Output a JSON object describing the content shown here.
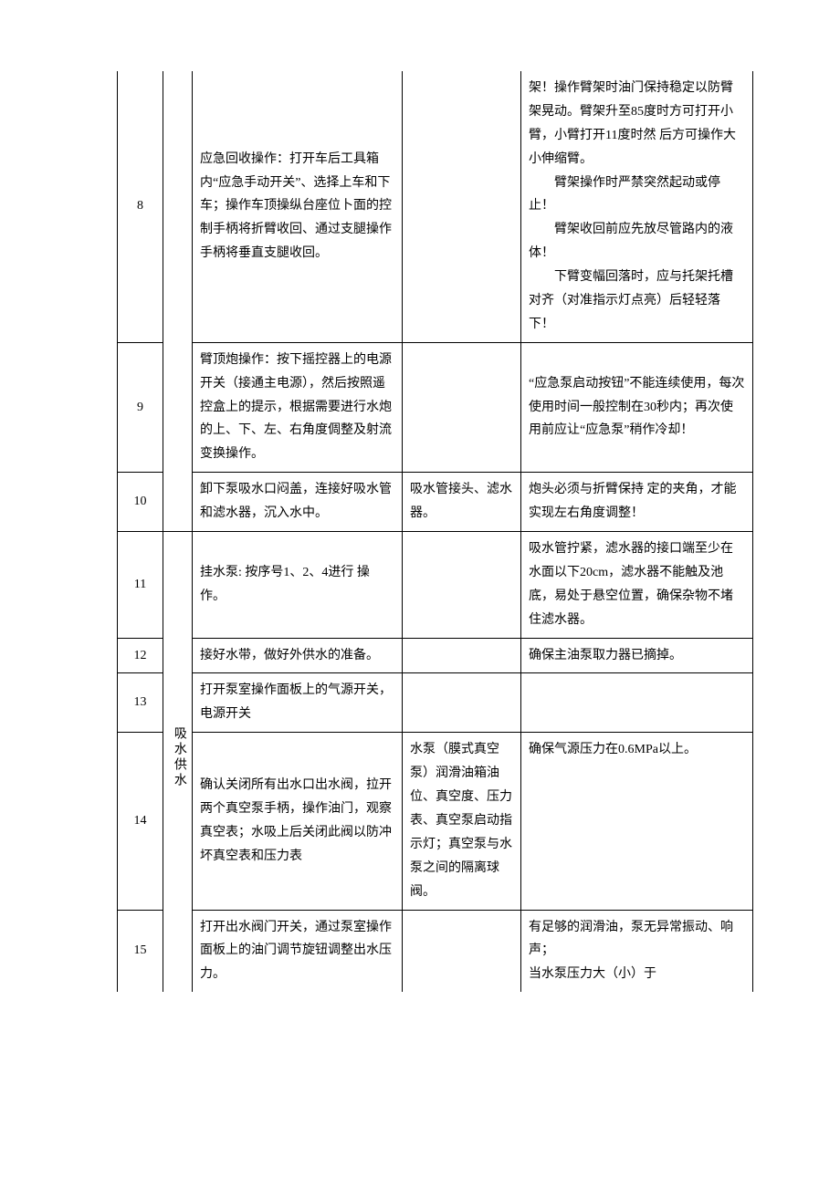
{
  "table": {
    "columns": {
      "num_width": 50,
      "cat_width": 32,
      "op_width": 230,
      "tool_width": 130
    },
    "border_color": "#000000",
    "background_color": "#ffffff",
    "font_size": 14,
    "line_height": 1.85,
    "rows": [
      {
        "num": "8",
        "category": "",
        "operation": "应急回收操作：打开车后工具箱内“应急手动开关”、选择上车和下车；操作车顶操纵台座位卜面的控制手柄将折臂收回、通过支腿操作手柄将垂直支腿收回。",
        "tool": "",
        "note": {
          "type": "multi",
          "parts": [
            {
              "text": "架！操作臂架时油门保持稳定以防臂架晃动。臂架升至85度时方可打开小 臂，小臂打开11度时然 后方可操作大小伸缩臂。",
              "indent": false
            },
            {
              "text": "臂架操作时严禁突然起动或停止！",
              "indent": true
            },
            {
              "text": "臂架收回前应先放尽管路内的液体！",
              "indent": true
            },
            {
              "text": "下臂变幅回落时，应与托架托槽对齐（对准指示灯点亮）后轻轻落下！",
              "indent": true
            }
          ]
        }
      },
      {
        "num": "9",
        "category": "",
        "operation": "臂顶炮操作：按下摇控器上的电源开关（接通主电源），然后按照遥控盒上的提示，根据需要进行水炮的上、下、左、右角度倜整及射流变换操作。",
        "tool": "",
        "note": "“应急泵启动按钮”不能连续使用，每次使用时间一般控制在30秒内；再次使用前应让“应急泵”稍作冷却！"
      },
      {
        "num": "10",
        "category": "",
        "operation": "卸下泵吸水口闷盖，连接好吸水管和滤水器，沉入水中。",
        "tool": "吸水管接头、滤水器。",
        "note": "炮头必须与折臂保持 定的夹角，才能实现左右角度调整！"
      },
      {
        "num": "11",
        "category": "吸水供水",
        "operation": "挂水泵: 按序号1、2、4进行 操作。",
        "tool": "",
        "note": "吸水管拧紧，滤水器的接口端至少在水面以下20cm，滤水器不能触及池底，易处于悬空位置，确保杂物不堵住滤水器。"
      },
      {
        "num": "12",
        "category": "",
        "operation": "接好水带，做好外供水的准备。",
        "tool": "",
        "note": "确保主油泵取力器已摘掉。"
      },
      {
        "num": "13",
        "category": "",
        "operation": "打开泵室操作面板上的气源开关，电源开关",
        "tool": "",
        "note": ""
      },
      {
        "num": "14",
        "category": "",
        "operation": "确认关闭所有出水口出水阀，拉开两个真空泵手柄，操作油门，观察真空表；水吸上后关闭此阀以防冲坏真空表和压力表",
        "tool": "水泵（膜式真空泵）润滑油箱油位、真空度、压力表、真空泵启动指示灯；真空泵与水泵之间的隔离球阀。",
        "note": "确保气源压力在0.6MPa以上。"
      },
      {
        "num": "15",
        "category": "",
        "operation": "打开出水阀门开关，通过泵室操作面板上的油门调节旋钮调整出水压力。",
        "tool": "",
        "note": "有足够的润滑油，泵无异常振动、响声；\n当水泵压力大（小）于"
      }
    ]
  }
}
